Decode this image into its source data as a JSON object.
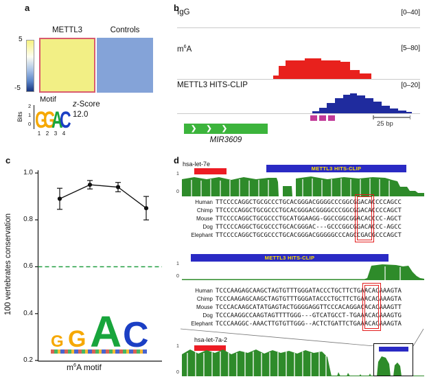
{
  "panel_a": {
    "label": "a",
    "col1": "METTL3",
    "col2": "Controls",
    "scale_max": "5",
    "scale_min": "-5",
    "motif_title": "Motif",
    "bits_label": "Bits",
    "bits_ticks": [
      "2",
      "1",
      "0"
    ],
    "logo_letters": [
      "G",
      "G",
      "A",
      "C"
    ],
    "logo_positions": [
      "1",
      "2",
      "3",
      "4"
    ],
    "zscore_italic": "z",
    "zscore_rest": "-Score",
    "zscore_value": "12.0"
  },
  "panel_b": {
    "label": "b",
    "track1_name": "IgG",
    "track1_range": "[0–40]",
    "track2_name_pre": "m",
    "track2_name_sup": "6",
    "track2_name_post": "A",
    "track2_range": "[5–80]",
    "track3_name": "METTL3 HITS-CLIP",
    "track3_range": "[0–20]",
    "scale_bar": "25 bp",
    "gene": "MIR3609"
  },
  "panel_c": {
    "label": "c",
    "ylabel": "100 vertebrates conservation",
    "yticks": [
      "1.0",
      "0.8",
      "0.6",
      "0.4",
      "0.2"
    ],
    "xlabel_pre": "m",
    "xlabel_sup": "6",
    "xlabel_post": "A motif",
    "logo_letters": [
      "G",
      "G",
      "A",
      "C"
    ]
  },
  "chart_data": {
    "type": "line",
    "x_positions": [
      1,
      2,
      3,
      4
    ],
    "x_categories": [
      "G",
      "G",
      "A",
      "C"
    ],
    "values": [
      0.89,
      0.95,
      0.94,
      0.85
    ],
    "errors": [
      0.045,
      0.018,
      0.02,
      0.05
    ],
    "threshold": 0.6,
    "ylim": [
      0.2,
      1.0
    ],
    "yticks": [
      1.0,
      0.8,
      0.6,
      0.4,
      0.2
    ],
    "ylabel": "100 vertebrates conservation",
    "xlabel": "m6A motif",
    "legend": null,
    "grid": false
  },
  "panel_d": {
    "label": "d",
    "axis_one": "1",
    "axis_zero": "0",
    "mirna1": "hsa-let-7e",
    "clip_label": "METTL3 HITS-CLIP",
    "mirna2": "hsa-let-7a-2",
    "align1": {
      "rows": [
        {
          "species": "Human",
          "pre": "TTCCCCAGGCTGCGCCCTGCACGGGACGGGGCCCGGCG",
          "box": "GACA",
          "post": "CCCCAGCC"
        },
        {
          "species": "Chimp",
          "pre": "TTCCCCAGGCTGCGCCCTGCACGGGACGGGGCCCGGCG",
          "box": "GACA",
          "post": "CCCCAGCT"
        },
        {
          "species": "Mouse",
          "pre": "TTCCCCAGGCTGCGCCCTGCATGGAAGG-GGCCGGCGG",
          "box": "ACAC",
          "post": "CCC-AGCT"
        },
        {
          "species": "Dog",
          "pre": "TTCCCCAGGCTGCGCCCTGCACGGGAC---GCCCGGCG",
          "box": "GACA",
          "post": "CCC-AGCC"
        },
        {
          "species": "Elephant",
          "pre": "TTCCCCAGGCTGCGCCCTGCACGGGACGGGGGCCCAGC",
          "box": "CGAC",
          "post": "GCCCAGCT"
        }
      ]
    },
    "align2": {
      "rows": [
        {
          "species": "Human",
          "pre": "TCCCAAGAGCAAGCTAGTGTTTGGGATACCCTGCTTCTGA",
          "box": "ACAC",
          "post": "AAAGTA"
        },
        {
          "species": "Chimp",
          "pre": "TCCCAAGAGCAAGCTAGTGTTTGGGATACCCTGCTTCTGA",
          "box": "ACAC",
          "post": "AAAGTA"
        },
        {
          "species": "Mouse",
          "pre": "TCCCACAAGCATATGAGTACTGGGGAGGTTCCCACAGGAC",
          "box": "ACAC",
          "post": "AAAGTT"
        },
        {
          "species": "Dog",
          "pre": "TCCCAAGGCCAAGTAGTTTTGGG---GTCATGCCT-TGAA",
          "box": "ACAC",
          "post": "AAAGTG"
        },
        {
          "species": "Elephant",
          "pre": "TCCCAAGGC-AAACTTGTGTTGGG--ACTCTGATTCTGAA",
          "box": "ACAC",
          "post": "AAAGTA"
        }
      ]
    }
  },
  "colors": {
    "heatmap_high": "#f2ef85",
    "heatmap_low": "#84a3d8",
    "heatmap_border": "#d85a6e",
    "m6a_peak_red": "#e8211d",
    "clip_peak_blue": "#1f2b9e",
    "clip_bar_blue": "#2a2ac4",
    "mirna_red": "#ed1c24",
    "track_green": "#2e8b2a",
    "gene_green": "#3cb43c",
    "motif_G": "#f6a800",
    "motif_A": "#18a53c",
    "motif_C": "#1b3fc4",
    "threshold_green": "#1f9d3f",
    "m6a_sites_magenta": "#c23a98",
    "clip_label_yellow": "#ffe000"
  }
}
